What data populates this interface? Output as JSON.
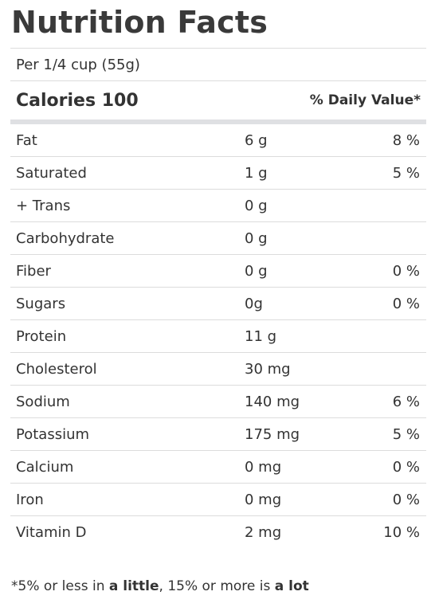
{
  "title": "Nutrition Facts",
  "serving": "Per 1/4 cup (55g)",
  "calories_label": "Calories 100",
  "daily_value_label": "% Daily Value*",
  "nutrients": [
    {
      "name": "Fat",
      "amount": "6 g",
      "dv": "8 %"
    },
    {
      "name": "Saturated",
      "amount": "1 g",
      "dv": "5 %"
    },
    {
      "name": "+ Trans",
      "amount": "0 g",
      "dv": ""
    },
    {
      "name": "Carbohydrate",
      "amount": "0 g",
      "dv": ""
    },
    {
      "name": "Fiber",
      "amount": "0 g",
      "dv": "0 %"
    },
    {
      "name": "Sugars",
      "amount": "0g",
      "dv": "0 %"
    },
    {
      "name": "Protein",
      "amount": "11 g",
      "dv": ""
    },
    {
      "name": "Cholesterol",
      "amount": "30 mg",
      "dv": ""
    },
    {
      "name": "Sodium",
      "amount": "140 mg",
      "dv": "6 %"
    },
    {
      "name": "Potassium",
      "amount": "175 mg",
      "dv": "5 %"
    },
    {
      "name": "Calcium",
      "amount": "0 mg",
      "dv": "0 %"
    },
    {
      "name": "Iron",
      "amount": "0 mg",
      "dv": "0 %"
    },
    {
      "name": "Vitamin D",
      "amount": "2 mg",
      "dv": "10 %"
    }
  ],
  "footnote": {
    "part1": "*5% or less in ",
    "bold1": "a little",
    "part2": ", 15% or more is ",
    "bold2": "a lot"
  }
}
